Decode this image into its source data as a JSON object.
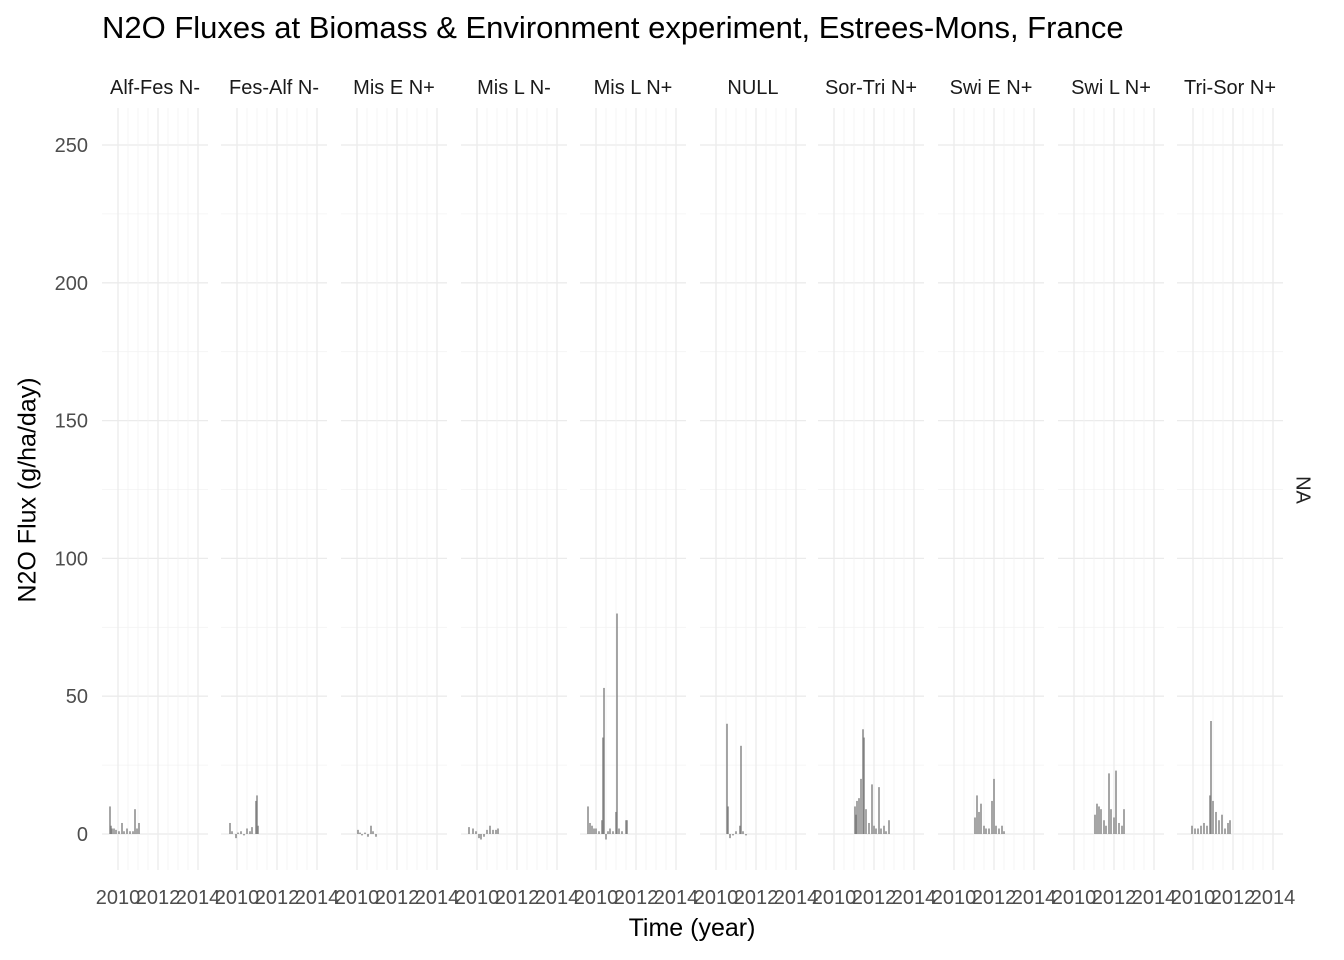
{
  "chart_data": {
    "type": "bar",
    "title": "N2O Fluxes at Biomass & Environment experiment, Estrees-Mons, France",
    "xlabel": "Time (year)",
    "ylabel": "N2O Flux (g/ha/day)",
    "ylim": [
      -15,
      262
    ],
    "y_ticks": [
      0,
      50,
      100,
      150,
      200,
      250
    ],
    "xlim": [
      2009.2,
      2014.5
    ],
    "x_ticks": [
      2010,
      2012,
      2014
    ],
    "x_tick_labels": [
      "2010",
      "2012",
      "2014"
    ],
    "grid": true,
    "row_strip": "NA",
    "bar_color": "#808080",
    "panels": [
      {
        "name": "Alf-Fes N-",
        "points": [
          [
            2009.6,
            10
          ],
          [
            2009.65,
            3
          ],
          [
            2009.7,
            2
          ],
          [
            2009.8,
            2
          ],
          [
            2009.9,
            1.5
          ],
          [
            2010.05,
            1
          ],
          [
            2010.2,
            4
          ],
          [
            2010.3,
            1
          ],
          [
            2010.45,
            2
          ],
          [
            2010.6,
            1
          ],
          [
            2010.75,
            1
          ],
          [
            2010.85,
            9
          ],
          [
            2010.95,
            2
          ],
          [
            2011.05,
            4
          ]
        ]
      },
      {
        "name": "Fes-Alf N-",
        "points": [
          [
            2009.65,
            4
          ],
          [
            2009.75,
            1
          ],
          [
            2009.95,
            -1.5
          ],
          [
            2010.05,
            0.5
          ],
          [
            2010.2,
            1
          ],
          [
            2010.35,
            -0.5
          ],
          [
            2010.5,
            2
          ],
          [
            2010.65,
            1
          ],
          [
            2010.75,
            2.5
          ],
          [
            2010.95,
            12
          ],
          [
            2011.0,
            14
          ],
          [
            2011.05,
            3
          ]
        ]
      },
      {
        "name": "Mis E N+",
        "points": [
          [
            2010.05,
            1.5
          ],
          [
            2010.15,
            0.5
          ],
          [
            2010.25,
            -0.5
          ],
          [
            2010.4,
            0.5
          ],
          [
            2010.55,
            -1
          ],
          [
            2010.7,
            3
          ],
          [
            2010.8,
            1
          ],
          [
            2010.95,
            -1
          ]
        ]
      },
      {
        "name": "Mis L N-",
        "points": [
          [
            2009.6,
            2.5
          ],
          [
            2009.8,
            2
          ],
          [
            2009.95,
            1
          ],
          [
            2010.1,
            -1.5
          ],
          [
            2010.2,
            -2
          ],
          [
            2010.35,
            -1
          ],
          [
            2010.5,
            1.5
          ],
          [
            2010.65,
            3
          ],
          [
            2010.8,
            1.5
          ],
          [
            2010.95,
            1.5
          ],
          [
            2011.05,
            2
          ]
        ]
      },
      {
        "name": "Mis L N+",
        "points": [
          [
            2009.6,
            10
          ],
          [
            2009.7,
            4
          ],
          [
            2009.8,
            3
          ],
          [
            2009.9,
            2
          ],
          [
            2010.0,
            2
          ],
          [
            2010.15,
            1
          ],
          [
            2010.3,
            5
          ],
          [
            2010.35,
            35
          ],
          [
            2010.4,
            53
          ],
          [
            2010.5,
            -2
          ],
          [
            2010.6,
            1
          ],
          [
            2010.7,
            2
          ],
          [
            2010.85,
            1
          ],
          [
            2011.0,
            8
          ],
          [
            2011.05,
            80
          ],
          [
            2011.15,
            2
          ],
          [
            2011.3,
            1
          ],
          [
            2011.5,
            5
          ],
          [
            2011.55,
            5
          ]
        ]
      },
      {
        "name": "NULL",
        "points": [
          [
            2010.55,
            40
          ],
          [
            2010.6,
            10
          ],
          [
            2010.7,
            -1.5
          ],
          [
            2010.85,
            -0.5
          ],
          [
            2011.0,
            1
          ],
          [
            2011.2,
            3
          ],
          [
            2011.25,
            32
          ],
          [
            2011.35,
            1
          ],
          [
            2011.5,
            -0.5
          ]
        ]
      },
      {
        "name": "Sor-Tri N+",
        "points": [
          [
            2011.05,
            10
          ],
          [
            2011.1,
            7
          ],
          [
            2011.15,
            12
          ],
          [
            2011.25,
            13
          ],
          [
            2011.35,
            20
          ],
          [
            2011.45,
            38
          ],
          [
            2011.5,
            35
          ],
          [
            2011.6,
            9
          ],
          [
            2011.75,
            4
          ],
          [
            2011.9,
            18
          ],
          [
            2012.0,
            3
          ],
          [
            2012.1,
            2
          ],
          [
            2012.25,
            17
          ],
          [
            2012.35,
            2
          ],
          [
            2012.5,
            3
          ],
          [
            2012.6,
            1
          ],
          [
            2012.75,
            5
          ]
        ]
      },
      {
        "name": "Swi E N+",
        "points": [
          [
            2011.05,
            6
          ],
          [
            2011.15,
            14
          ],
          [
            2011.25,
            8
          ],
          [
            2011.35,
            11
          ],
          [
            2011.5,
            3
          ],
          [
            2011.6,
            2
          ],
          [
            2011.75,
            2
          ],
          [
            2011.9,
            12
          ],
          [
            2012.0,
            20
          ],
          [
            2012.1,
            3
          ],
          [
            2012.25,
            2
          ],
          [
            2012.4,
            3
          ],
          [
            2012.5,
            1
          ]
        ]
      },
      {
        "name": "Swi L N+",
        "points": [
          [
            2011.05,
            7
          ],
          [
            2011.15,
            11
          ],
          [
            2011.25,
            10
          ],
          [
            2011.35,
            9
          ],
          [
            2011.5,
            5
          ],
          [
            2011.6,
            3
          ],
          [
            2011.75,
            22
          ],
          [
            2011.85,
            9
          ],
          [
            2012.0,
            6
          ],
          [
            2012.1,
            23
          ],
          [
            2012.25,
            4
          ],
          [
            2012.4,
            3
          ],
          [
            2012.5,
            9
          ]
        ]
      },
      {
        "name": "Tri-Sor N+",
        "points": [
          [
            2009.95,
            3
          ],
          [
            2010.1,
            2
          ],
          [
            2010.25,
            2
          ],
          [
            2010.4,
            3
          ],
          [
            2010.55,
            4
          ],
          [
            2010.7,
            3
          ],
          [
            2010.85,
            14
          ],
          [
            2010.9,
            41
          ],
          [
            2011.0,
            12
          ],
          [
            2011.15,
            8
          ],
          [
            2011.3,
            5
          ],
          [
            2011.45,
            7
          ],
          [
            2011.6,
            2
          ],
          [
            2011.75,
            4
          ],
          [
            2011.85,
            5
          ]
        ]
      }
    ]
  }
}
